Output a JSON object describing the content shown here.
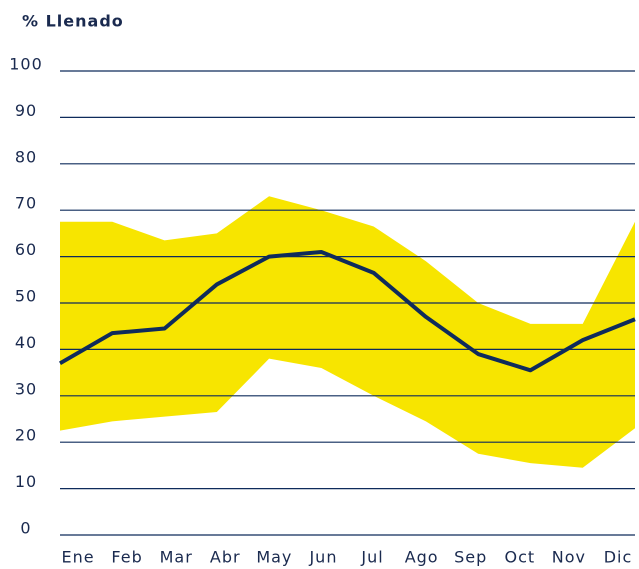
{
  "chart_data": {
    "type": "band-line",
    "title": "% Llenado",
    "categories": [
      "Ene",
      "Feb",
      "Mar",
      "Abr",
      "May",
      "Jun",
      "Jul",
      "Ago",
      "Sep",
      "Oct",
      "Nov",
      "Dic"
    ],
    "series": [
      {
        "color": "#f7e500",
        "values": [
          22.5,
          24.5,
          25.5,
          26.5,
          38,
          36,
          30,
          24.5,
          17.5,
          15.5,
          14.5,
          23
        ]
      },
      {
        "color": "#f7e500",
        "values": [
          67.5,
          67.5,
          63.5,
          65,
          73,
          70,
          66.5,
          59,
          50,
          45.5,
          45.5,
          67.5
        ]
      },
      {
        "color": "#0f2b5b",
        "values": [
          37,
          43.5,
          44.5,
          54,
          60,
          61,
          56.5,
          47,
          39,
          35.5,
          42,
          46.5
        ]
      }
    ],
    "ylim": [
      0,
      100
    ],
    "yticks": [
      0,
      10,
      20,
      30,
      40,
      50,
      60,
      70,
      80,
      90,
      100
    ],
    "grid": true
  }
}
